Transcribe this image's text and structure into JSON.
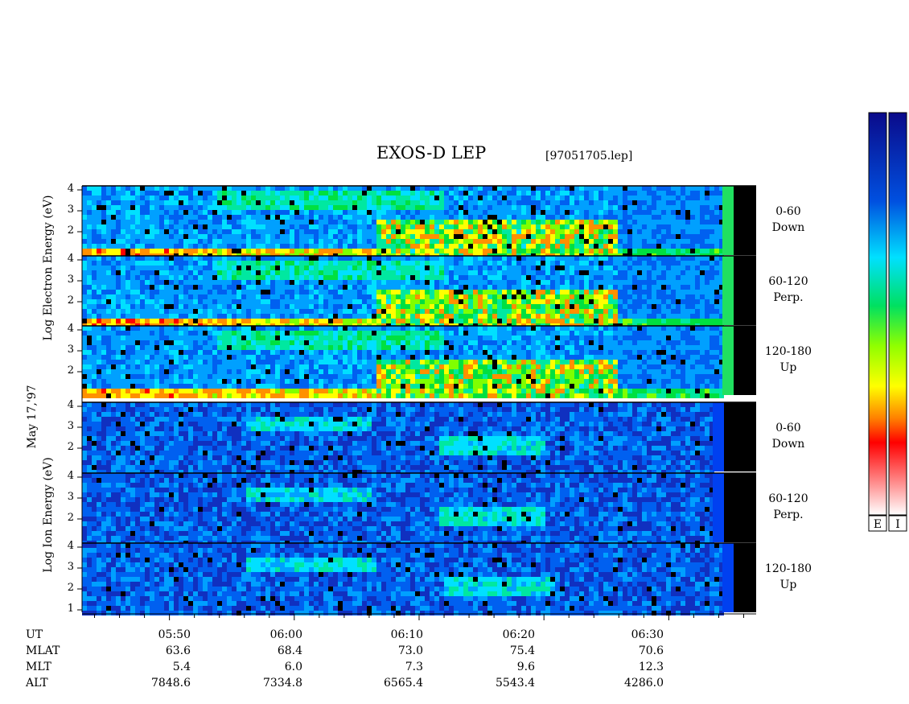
{
  "header": {
    "title": "EXOS-D LEP",
    "file": "[97051705.lep]"
  },
  "y_labels": {
    "date": "May 17,'97",
    "electron": "Log Electron Energy (eV)",
    "ion": "Log Ion Energy (eV)"
  },
  "chart_data": {
    "type": "heatmap",
    "x_axis": {
      "label": "UT",
      "ticks": [
        "05:50",
        "06:00",
        "06:10",
        "06:20",
        "06:30"
      ],
      "range_minutes": [
        0,
        54
      ]
    },
    "orbit_params": [
      {
        "name": "UT",
        "values": [
          "05:50",
          "06:00",
          "06:10",
          "06:20",
          "06:30"
        ]
      },
      {
        "name": "MLAT",
        "values": [
          "63.6",
          "68.4",
          "73.0",
          "75.4",
          "70.6"
        ]
      },
      {
        "name": "MLT",
        "values": [
          "5.4",
          "6.0",
          "7.3",
          "9.6",
          "12.3"
        ]
      },
      {
        "name": "ALT",
        "values": [
          "7848.6",
          "7334.8",
          "6565.4",
          "5543.4",
          "4286.0"
        ]
      }
    ],
    "y_ticks": [
      "4",
      "3",
      "2"
    ],
    "y_ticks_bottom": [
      "4",
      "3",
      "2",
      "1"
    ],
    "panels": [
      {
        "species": "electron",
        "pitch": "0-60",
        "direction": "Down"
      },
      {
        "species": "electron",
        "pitch": "60-120",
        "direction": "Perp."
      },
      {
        "species": "electron",
        "pitch": "120-180",
        "direction": "Up"
      },
      {
        "species": "ion",
        "pitch": "0-60",
        "direction": "Down"
      },
      {
        "species": "ion",
        "pitch": "60-120",
        "direction": "Perp."
      },
      {
        "species": "ion",
        "pitch": "120-180",
        "direction": "Up"
      }
    ],
    "colorbars": [
      {
        "label": "E",
        "colors": [
          "#0a0a8a",
          "#0050e0",
          "#00e0ff",
          "#00e060",
          "#90ff00",
          "#ffff00",
          "#ff8000",
          "#ff0000",
          "#ffffff"
        ]
      },
      {
        "label": "I",
        "colors": [
          "#0a0a8a",
          "#0050e0",
          "#00e0ff",
          "#00e060",
          "#90ff00",
          "#ffff00",
          "#ff8000",
          "#ff0000",
          "#ffffff"
        ]
      }
    ]
  }
}
